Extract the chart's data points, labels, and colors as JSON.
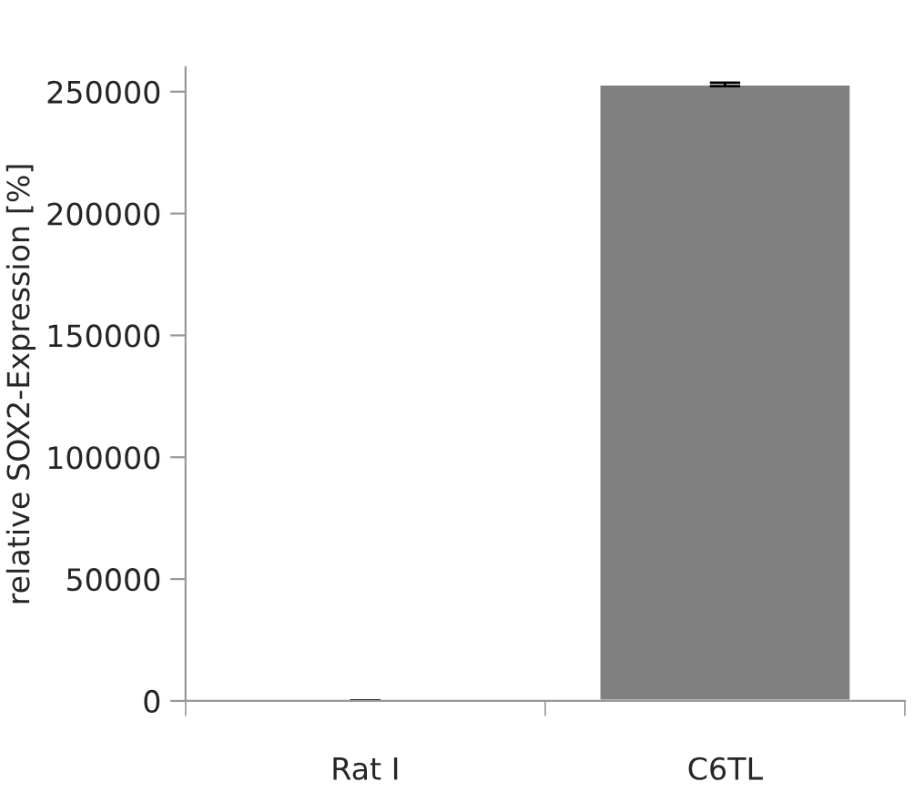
{
  "chart_data": {
    "type": "bar",
    "ylabel": "relative SOX2-Expression [%]",
    "categories": [
      "Rat I",
      "C6TL"
    ],
    "series": [
      {
        "color": "#808080",
        "values": [
          100,
          253000
        ],
        "errors": [
          null,
          700
        ]
      }
    ],
    "ylim": [
      0,
      260000
    ],
    "yticks": [
      0,
      50000,
      100000,
      150000,
      200000,
      250000
    ],
    "grid": false,
    "legend": false
  }
}
